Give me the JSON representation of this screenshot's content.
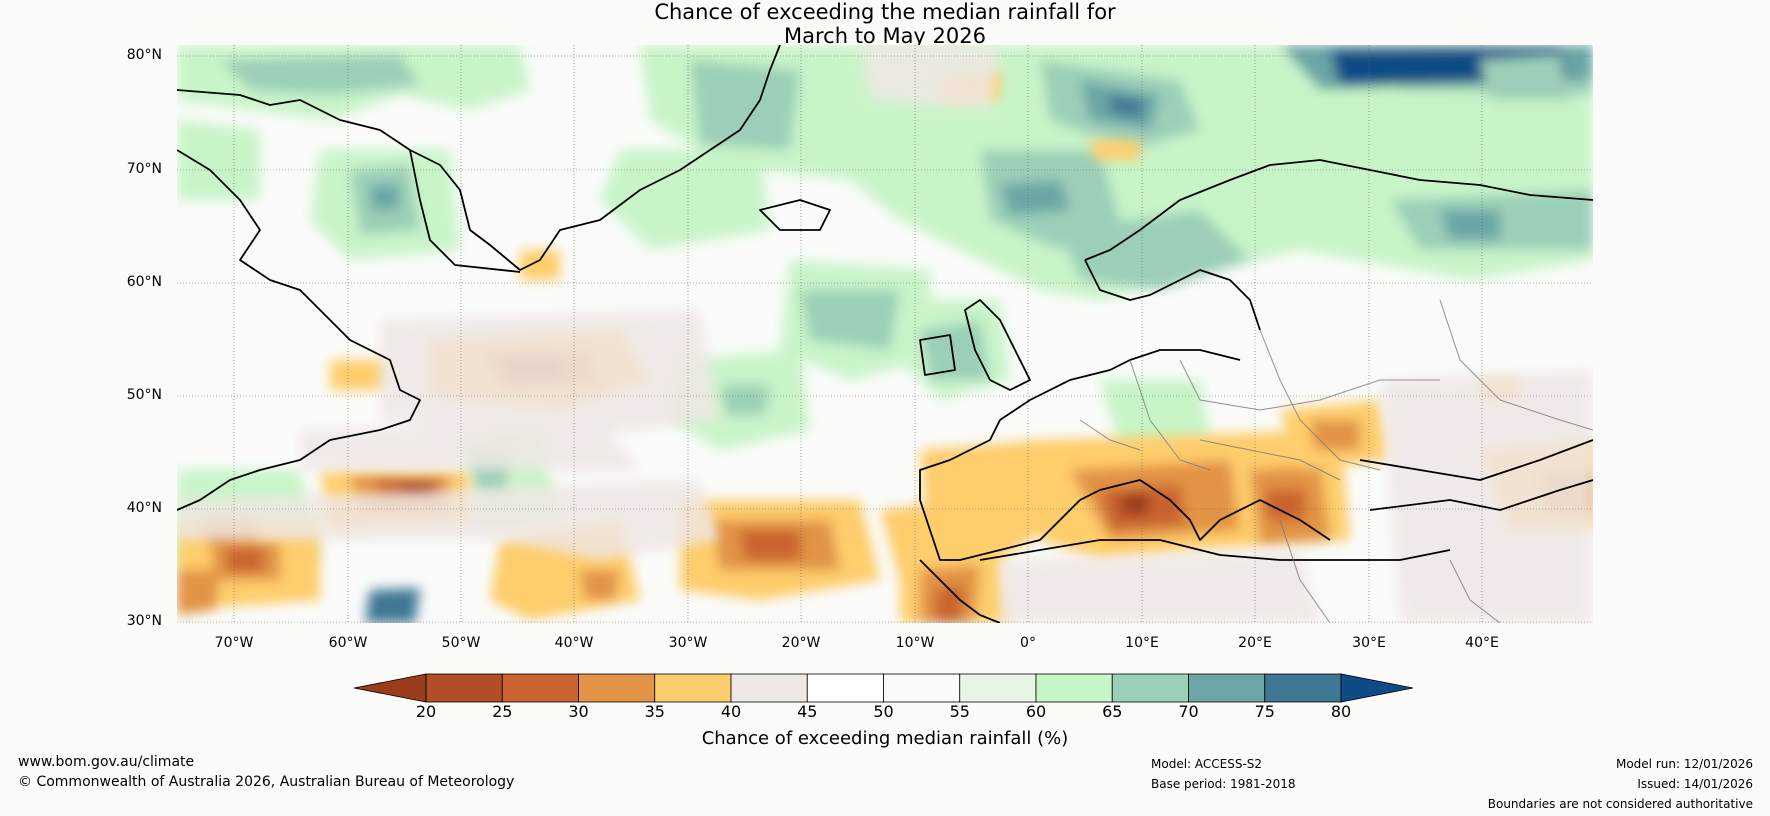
{
  "title_line1": "Chance of exceeding the median rainfall for",
  "title_line2": "March to May 2026",
  "lat_labels": [
    "80°N",
    "70°N",
    "60°N",
    "50°N",
    "40°N",
    "30°N"
  ],
  "lon_labels": [
    "70°W",
    "60°W",
    "50°W",
    "40°W",
    "30°W",
    "20°W",
    "10°W",
    "0°",
    "10°E",
    "20°E",
    "30°E",
    "40°E"
  ],
  "colorbar": {
    "ticks": [
      "20",
      "25",
      "30",
      "35",
      "40",
      "45",
      "50",
      "55",
      "60",
      "65",
      "70",
      "75",
      "80"
    ],
    "colors": [
      "#9c3a1c",
      "#b24e27",
      "#c9632f",
      "#e29345",
      "#fecd6c",
      "#efe7e4",
      "#ffffff",
      "#fafbf9",
      "#e7f4e6",
      "#c8f5c8",
      "#9ccfb8",
      "#6ba5a6",
      "#3f7794",
      "#0f4b86"
    ],
    "title": "Chance of exceeding median rainfall (%)"
  },
  "footer": {
    "url": "www.bom.gov.au/climate",
    "copyright": "© Commonwealth of Australia 2026, Australian Bureau of Meteorology",
    "model": "Model: ACCESS-S2",
    "base_period": "Base period: 1981-2018",
    "model_run": "Model run: 12/01/2026",
    "issued": "Issued: 14/01/2026",
    "disclaimer": "Boundaries are not considered authoritative"
  }
}
